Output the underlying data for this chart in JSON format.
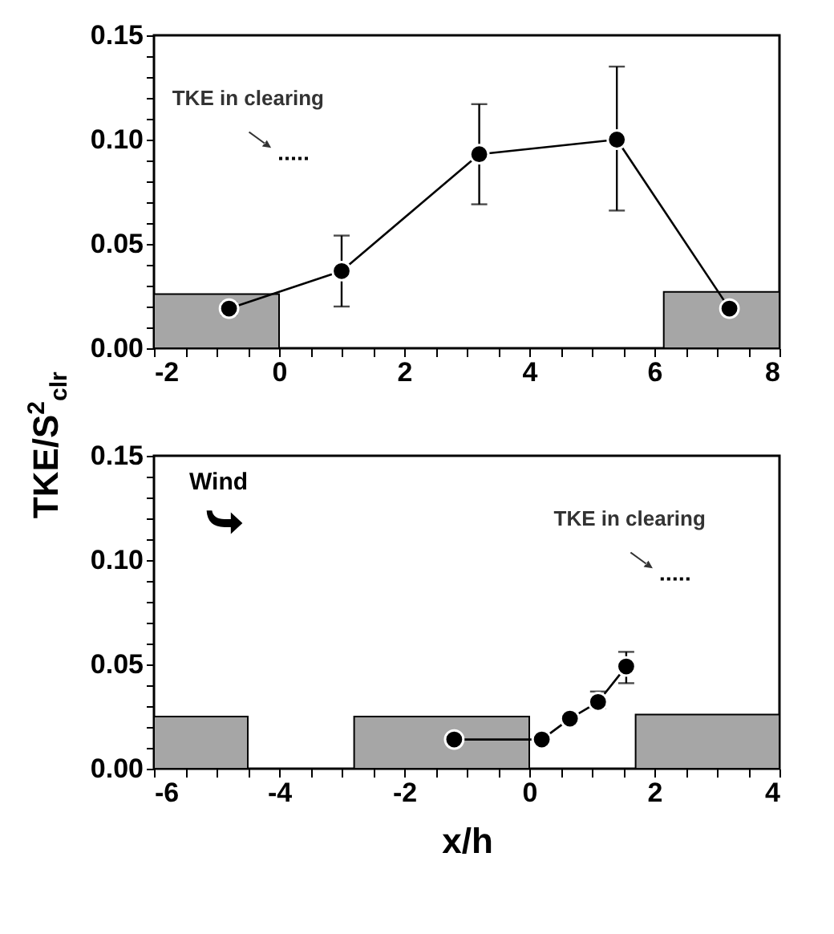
{
  "chart_data": [
    {
      "type": "line",
      "ylabel": "TKE/S$^{2}$$_{clr}$",
      "xlim": [
        -2,
        8
      ],
      "xticks": [
        -2,
        {
          "value": -1.5,
          "label": null
        },
        {
          "value": -1,
          "label": null
        },
        {
          "value": -0.5,
          "label": null
        },
        0,
        {
          "value": 0.5,
          "label": null
        },
        {
          "value": 1,
          "label": null
        },
        {
          "value": 1.5,
          "label": null
        },
        2,
        {
          "value": 2.5,
          "label": null
        },
        {
          "value": 3,
          "label": null
        },
        {
          "value": 3.5,
          "label": null
        },
        4,
        {
          "value": 4.5,
          "label": null
        },
        {
          "value": 5,
          "label": null
        },
        {
          "value": 5.5,
          "label": null
        },
        6,
        {
          "value": 6.5,
          "label": null
        },
        {
          "value": 7,
          "label": null
        },
        {
          "value": 7.5,
          "label": null
        },
        8
      ],
      "ylim": [
        0,
        0.15
      ],
      "yticks": [
        {
          "value": 0,
          "label": "0.00"
        },
        {
          "value": 0.01,
          "label": null
        },
        {
          "value": 0.02,
          "label": null
        },
        {
          "value": 0.03,
          "label": null
        },
        {
          "value": 0.04,
          "label": null
        },
        {
          "value": 0.05,
          "label": "0.05"
        },
        {
          "value": 0.06,
          "label": null
        },
        {
          "value": 0.07,
          "label": null
        },
        {
          "value": 0.08,
          "label": null
        },
        {
          "value": 0.09,
          "label": null
        },
        {
          "value": 0.1,
          "label": "0.10"
        },
        {
          "value": 0.11,
          "label": null
        },
        {
          "value": 0.12,
          "label": null
        },
        {
          "value": 0.13,
          "label": null
        },
        {
          "value": 0.14,
          "label": null
        },
        {
          "value": 0.15,
          "label": "0.15"
        }
      ],
      "series": [
        {
          "type": "area",
          "color": "#a6a6a6",
          "x": [
            -2,
            0
          ],
          "values": [
            0.026,
            0.026
          ]
        },
        {
          "type": "area",
          "color": "#a6a6a6",
          "x": [
            6.15,
            8
          ],
          "values": [
            0.027,
            0.027
          ]
        },
        {
          "color": "#000000",
          "line_style": "dotted",
          "marker": "none",
          "x": [
            0,
            0.5
          ],
          "values": [
            0.091,
            0.091
          ]
        },
        {
          "color": "#000000",
          "marker": "circle",
          "x": [
            -0.8,
            1.0,
            3.2,
            5.4,
            7.2
          ],
          "values": [
            0.019,
            0.037,
            0.093,
            0.1,
            0.019
          ],
          "errors": [
            [
              0.016,
              0.022
            ],
            [
              0.02,
              0.054
            ],
            [
              0.069,
              0.117
            ],
            [
              0.066,
              0.135
            ],
            null
          ]
        }
      ],
      "annotations": [
        {
          "text": "TKE in clearing",
          "x": 0,
          "y": 0.091
        }
      ]
    },
    {
      "type": "line",
      "xlabel": "x/h",
      "xlim": [
        -6,
        4
      ],
      "xticks": [
        -6,
        {
          "value": -5.5,
          "label": null
        },
        {
          "value": -5,
          "label": null
        },
        {
          "value": -4.5,
          "label": null
        },
        -4,
        {
          "value": -3.5,
          "label": null
        },
        {
          "value": -3,
          "label": null
        },
        {
          "value": -2.5,
          "label": null
        },
        -2,
        {
          "value": -1.5,
          "label": null
        },
        {
          "value": -1,
          "label": null
        },
        {
          "value": -0.5,
          "label": null
        },
        0,
        {
          "value": 0.5,
          "label": null
        },
        {
          "value": 1,
          "label": null
        },
        {
          "value": 1.5,
          "label": null
        },
        2,
        {
          "value": 2.5,
          "label": null
        },
        {
          "value": 3,
          "label": null
        },
        {
          "value": 3.5,
          "label": null
        },
        4
      ],
      "ylim": [
        0,
        0.15
      ],
      "yticks": [
        {
          "value": 0,
          "label": "0.00"
        },
        {
          "value": 0.01,
          "label": null
        },
        {
          "value": 0.02,
          "label": null
        },
        {
          "value": 0.03,
          "label": null
        },
        {
          "value": 0.04,
          "label": null
        },
        {
          "value": 0.05,
          "label": "0.05"
        },
        {
          "value": 0.06,
          "label": null
        },
        {
          "value": 0.07,
          "label": null
        },
        {
          "value": 0.08,
          "label": null
        },
        {
          "value": 0.09,
          "label": null
        },
        {
          "value": 0.1,
          "label": "0.10"
        },
        {
          "value": 0.11,
          "label": null
        },
        {
          "value": 0.12,
          "label": null
        },
        {
          "value": 0.13,
          "label": null
        },
        {
          "value": 0.14,
          "label": null
        },
        {
          "value": 0.15,
          "label": "0.15"
        }
      ],
      "series": [
        {
          "type": "area",
          "color": "#a6a6a6",
          "x": [
            -6,
            -4.5
          ],
          "values": [
            0.025,
            0.025
          ]
        },
        {
          "type": "area",
          "color": "#a6a6a6",
          "x": [
            -2.8,
            0
          ],
          "values": [
            0.025,
            0.025
          ]
        },
        {
          "type": "area",
          "color": "#a6a6a6",
          "x": [
            1.7,
            4
          ],
          "values": [
            0.026,
            0.026
          ]
        },
        {
          "color": "#000000",
          "line_style": "dotted",
          "marker": "none",
          "x": [
            2.1,
            2.6
          ],
          "values": [
            0.091,
            0.091
          ]
        },
        {
          "color": "#000000",
          "marker": "circle",
          "x": [
            -1.2,
            0.2,
            0.65,
            1.1,
            1.55
          ],
          "values": [
            0.014,
            0.014,
            0.024,
            0.032,
            0.049
          ],
          "errors": [
            null,
            null,
            null,
            [
              0.029,
              0.037
            ],
            [
              0.041,
              0.056
            ]
          ]
        }
      ],
      "annotations": [
        "Wind",
        {
          "text": "TKE in clearing",
          "x": 2.1,
          "y": 0.091
        }
      ]
    }
  ]
}
